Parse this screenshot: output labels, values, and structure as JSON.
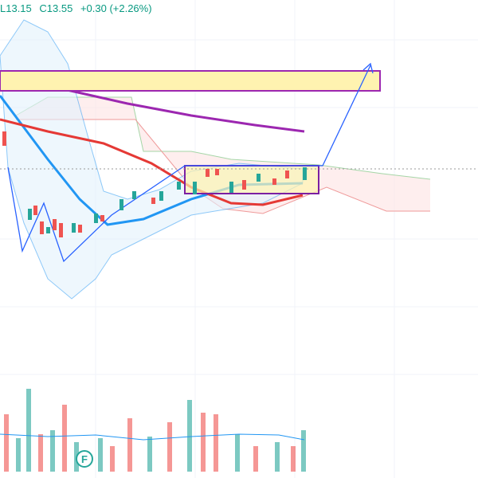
{
  "header": {
    "low": "L13.15",
    "close": "C13.55",
    "change": "+0.30 (+2.26%)"
  },
  "marker": "F"
}
